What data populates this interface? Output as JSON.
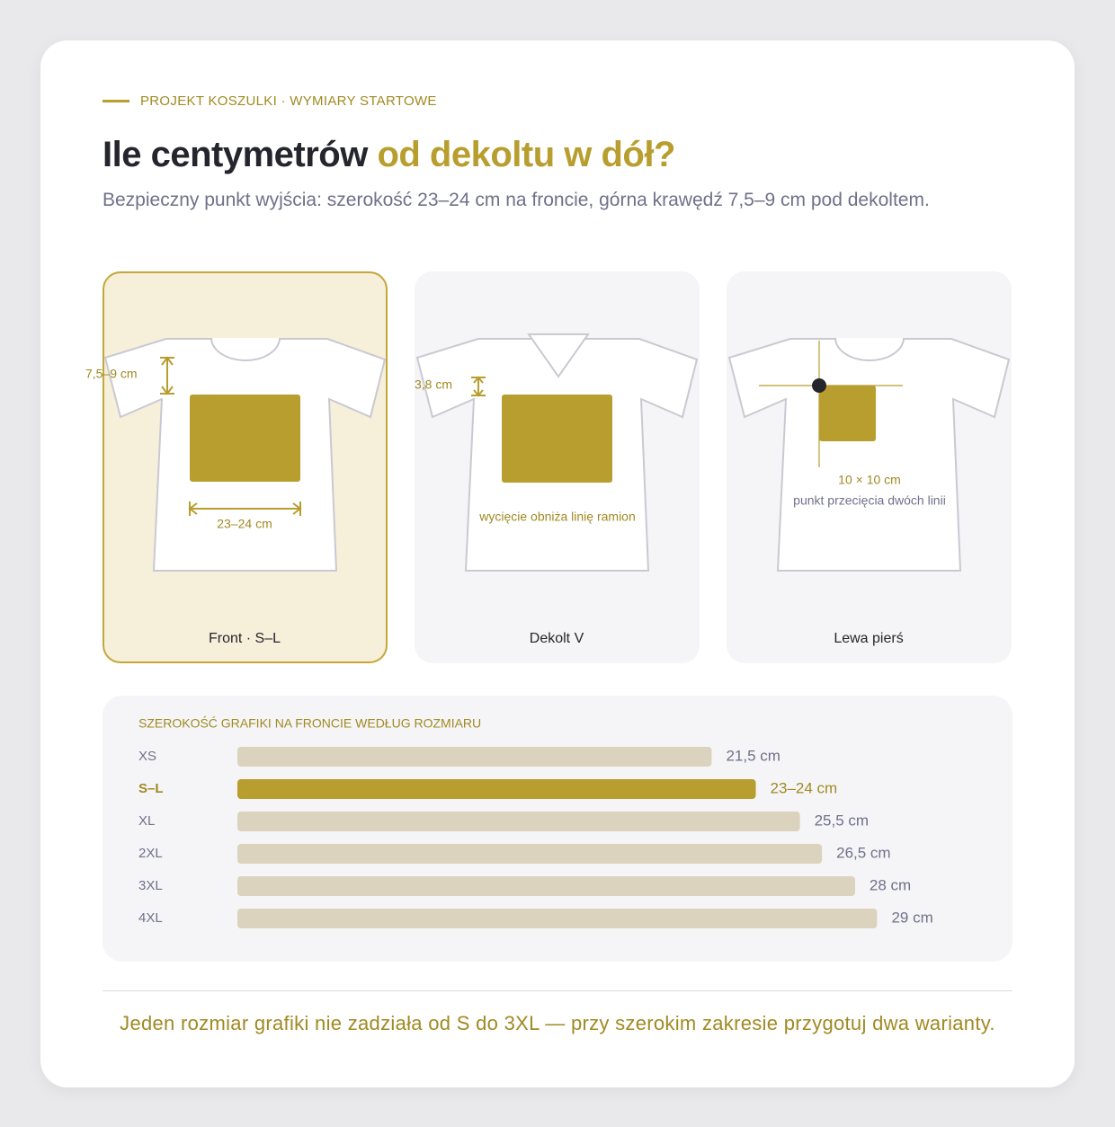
{
  "header": {
    "eyebrow": "PROJEKT KOSZULKI · WYMIARY STARTOWE",
    "title_dark": "Ile centymetrów",
    "title_accent": "od dekoltu w dół?",
    "subtitle": "Bezpieczny punkt wyjścia: szerokość 23–24 cm na froncie, górna krawędź 7,5–9 cm pod dekoltem."
  },
  "cards": [
    {
      "caption": "Front · S–L",
      "dimension_vertical": "7,5–9 cm",
      "dimension_horizontal": "23–24 cm"
    },
    {
      "caption": "Dekolt V",
      "dimension_vertical": "3,8 cm",
      "note": "wycięcie obniża linię ramion"
    },
    {
      "caption": "Lewa pierś",
      "size": "10 × 10 cm",
      "note": "punkt przecięcia dwóch linii"
    }
  ],
  "chart_data": {
    "type": "bar",
    "orientation": "horizontal",
    "title": "SZEROKOŚĆ GRAFIKI NA FRONCIE WEDŁUG ROZMIARU",
    "categories": [
      "XS",
      "S–L",
      "XL",
      "2XL",
      "3XL",
      "4XL"
    ],
    "values": [
      21.5,
      23.5,
      25.5,
      26.5,
      28,
      29
    ],
    "value_labels": [
      "21,5 cm",
      "23–24 cm",
      "25,5 cm",
      "26,5 cm",
      "28 cm",
      "29 cm"
    ],
    "xlim": [
      0,
      30
    ],
    "colors": [
      "#dcd3bf",
      "#b89e2e",
      "#dcd3bf",
      "#dcd3bf",
      "#dcd3bf",
      "#dcd3bf"
    ],
    "highlight_index": 1
  },
  "footer": "Jeden rozmiar grafiki nie zadziała od S do 3XL — przy szerokim zakresie przygotuj dwa warianty."
}
